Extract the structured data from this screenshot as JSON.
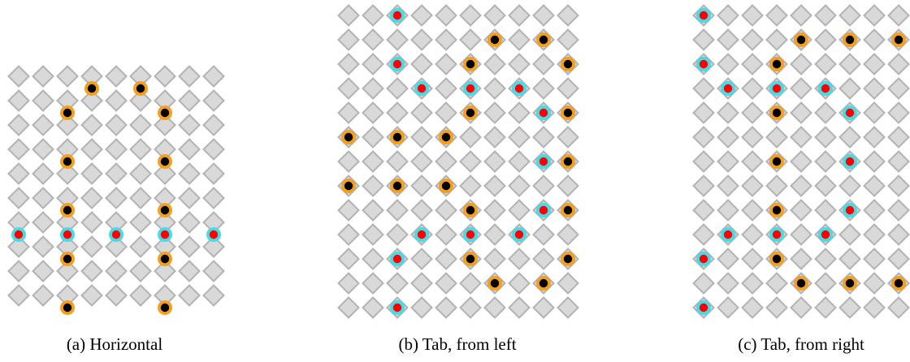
{
  "colors": {
    "tile_fill": "#d9d9d9",
    "tile_stroke": "#b3b3b3",
    "ring_orange": "#f3a020",
    "ring_cyan": "#45dce6",
    "dot_black": "#000000",
    "dot_red": "#ff0000"
  },
  "panels": [
    {
      "id": "a",
      "caption": "(a) Horizontal",
      "cols": 9,
      "rows": 10,
      "markers": [
        {
          "c": 3,
          "r": 0.5,
          "ring": "orange",
          "dot": "black"
        },
        {
          "c": 5,
          "r": 0.5,
          "ring": "orange",
          "dot": "black"
        },
        {
          "c": 2,
          "r": 1.5,
          "ring": "orange",
          "dot": "black"
        },
        {
          "c": 6,
          "r": 1.5,
          "ring": "orange",
          "dot": "black"
        },
        {
          "c": 2,
          "r": 3.5,
          "ring": "orange",
          "dot": "black"
        },
        {
          "c": 6,
          "r": 3.5,
          "ring": "orange",
          "dot": "black"
        },
        {
          "c": 2,
          "r": 5.5,
          "ring": "orange",
          "dot": "black"
        },
        {
          "c": 6,
          "r": 5.5,
          "ring": "orange",
          "dot": "black"
        },
        {
          "c": 0,
          "r": 6.5,
          "ring": "cyan",
          "dot": "red"
        },
        {
          "c": 2,
          "r": 6.5,
          "ring": "cyan",
          "dot": "red"
        },
        {
          "c": 4,
          "r": 6.5,
          "ring": "cyan",
          "dot": "red"
        },
        {
          "c": 6,
          "r": 6.5,
          "ring": "cyan",
          "dot": "red"
        },
        {
          "c": 8,
          "r": 6.5,
          "ring": "cyan",
          "dot": "red"
        },
        {
          "c": 2,
          "r": 7.5,
          "ring": "orange",
          "dot": "black"
        },
        {
          "c": 6,
          "r": 7.5,
          "ring": "orange",
          "dot": "black"
        },
        {
          "c": 2,
          "r": 9.5,
          "ring": "orange",
          "dot": "black"
        },
        {
          "c": 6,
          "r": 9.5,
          "ring": "orange",
          "dot": "black"
        }
      ]
    },
    {
      "id": "b",
      "caption": "(b) Tab, from left",
      "cols": 10,
      "rows": 13,
      "markers": [
        {
          "c": 2,
          "r": 0,
          "ring": "cyan",
          "dot": "red"
        },
        {
          "c": 6,
          "r": 1,
          "ring": "orange",
          "dot": "black"
        },
        {
          "c": 8,
          "r": 1,
          "ring": "orange",
          "dot": "black"
        },
        {
          "c": 2,
          "r": 2,
          "ring": "cyan",
          "dot": "red"
        },
        {
          "c": 5,
          "r": 2,
          "ring": "orange",
          "dot": "black"
        },
        {
          "c": 9,
          "r": 2,
          "ring": "orange",
          "dot": "black"
        },
        {
          "c": 3,
          "r": 3,
          "ring": "cyan",
          "dot": "red"
        },
        {
          "c": 5,
          "r": 3,
          "ring": "cyan",
          "dot": "red"
        },
        {
          "c": 7,
          "r": 3,
          "ring": "cyan",
          "dot": "red"
        },
        {
          "c": 5,
          "r": 4,
          "ring": "orange",
          "dot": "black"
        },
        {
          "c": 8,
          "r": 4,
          "ring": "cyan",
          "dot": "red"
        },
        {
          "c": 9,
          "r": 4,
          "ring": "orange",
          "dot": "black"
        },
        {
          "c": 0,
          "r": 5,
          "ring": "orange",
          "dot": "black"
        },
        {
          "c": 2,
          "r": 5,
          "ring": "orange",
          "dot": "black"
        },
        {
          "c": 4,
          "r": 5,
          "ring": "orange",
          "dot": "black"
        },
        {
          "c": 8,
          "r": 6,
          "ring": "cyan",
          "dot": "red"
        },
        {
          "c": 9,
          "r": 6,
          "ring": "orange",
          "dot": "black"
        },
        {
          "c": 0,
          "r": 7,
          "ring": "orange",
          "dot": "black"
        },
        {
          "c": 2,
          "r": 7,
          "ring": "orange",
          "dot": "black"
        },
        {
          "c": 4,
          "r": 7,
          "ring": "orange",
          "dot": "black"
        },
        {
          "c": 5,
          "r": 8,
          "ring": "orange",
          "dot": "black"
        },
        {
          "c": 8,
          "r": 8,
          "ring": "cyan",
          "dot": "red"
        },
        {
          "c": 9,
          "r": 8,
          "ring": "orange",
          "dot": "black"
        },
        {
          "c": 3,
          "r": 9,
          "ring": "cyan",
          "dot": "red"
        },
        {
          "c": 5,
          "r": 9,
          "ring": "cyan",
          "dot": "red"
        },
        {
          "c": 7,
          "r": 9,
          "ring": "cyan",
          "dot": "red"
        },
        {
          "c": 2,
          "r": 10,
          "ring": "cyan",
          "dot": "red"
        },
        {
          "c": 5,
          "r": 10,
          "ring": "orange",
          "dot": "black"
        },
        {
          "c": 9,
          "r": 10,
          "ring": "orange",
          "dot": "black"
        },
        {
          "c": 6,
          "r": 11,
          "ring": "orange",
          "dot": "black"
        },
        {
          "c": 8,
          "r": 11,
          "ring": "orange",
          "dot": "black"
        },
        {
          "c": 2,
          "r": 12,
          "ring": "cyan",
          "dot": "red"
        }
      ]
    },
    {
      "id": "c",
      "caption": "(c) Tab, from right",
      "cols": 9,
      "rows": 13,
      "markers": [
        {
          "c": 0,
          "r": 0,
          "ring": "cyan",
          "dot": "red"
        },
        {
          "c": 4,
          "r": 1,
          "ring": "orange",
          "dot": "black"
        },
        {
          "c": 6,
          "r": 1,
          "ring": "orange",
          "dot": "black"
        },
        {
          "c": 8,
          "r": 1,
          "ring": "orange",
          "dot": "black"
        },
        {
          "c": 0,
          "r": 2,
          "ring": "cyan",
          "dot": "red"
        },
        {
          "c": 3,
          "r": 2,
          "ring": "orange",
          "dot": "black"
        },
        {
          "c": 1,
          "r": 3,
          "ring": "cyan",
          "dot": "red"
        },
        {
          "c": 3,
          "r": 3,
          "ring": "cyan",
          "dot": "red"
        },
        {
          "c": 5,
          "r": 3,
          "ring": "cyan",
          "dot": "red"
        },
        {
          "c": 3,
          "r": 4,
          "ring": "orange",
          "dot": "black"
        },
        {
          "c": 6,
          "r": 4,
          "ring": "cyan",
          "dot": "red"
        },
        {
          "c": 3,
          "r": 6,
          "ring": "orange",
          "dot": "black"
        },
        {
          "c": 6,
          "r": 6,
          "ring": "cyan",
          "dot": "red"
        },
        {
          "c": 3,
          "r": 8,
          "ring": "orange",
          "dot": "black"
        },
        {
          "c": 6,
          "r": 8,
          "ring": "cyan",
          "dot": "red"
        },
        {
          "c": 1,
          "r": 9,
          "ring": "cyan",
          "dot": "red"
        },
        {
          "c": 3,
          "r": 9,
          "ring": "cyan",
          "dot": "red"
        },
        {
          "c": 5,
          "r": 9,
          "ring": "cyan",
          "dot": "red"
        },
        {
          "c": 0,
          "r": 10,
          "ring": "cyan",
          "dot": "red"
        },
        {
          "c": 3,
          "r": 10,
          "ring": "orange",
          "dot": "black"
        },
        {
          "c": 4,
          "r": 11,
          "ring": "orange",
          "dot": "black"
        },
        {
          "c": 6,
          "r": 11,
          "ring": "orange",
          "dot": "black"
        },
        {
          "c": 8,
          "r": 11,
          "ring": "orange",
          "dot": "black"
        },
        {
          "c": 0,
          "r": 12,
          "ring": "cyan",
          "dot": "red"
        }
      ]
    }
  ]
}
